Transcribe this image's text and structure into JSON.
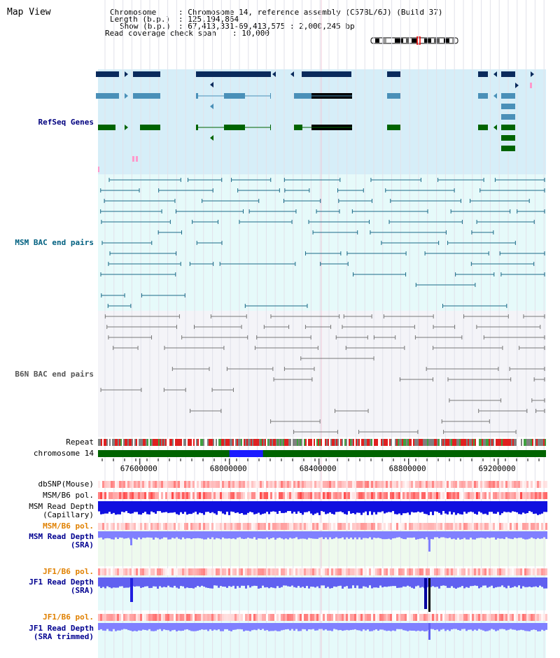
{
  "title": "Map View",
  "info": {
    "chromosome_label": "Chromosome",
    "chromosome_value": ": Chromosome 14, reference assembly (C57BL/6J) (Build 37)",
    "length_label": "Length (b.p.)",
    "length_value": ": 125,194,864",
    "show_label": "Show (b.p.)",
    "show_value": ": 67,413,331-69,413,575 : 2,000,245 bp",
    "coverage_label": "Read coverage check span",
    "coverage_value": ": 10,000"
  },
  "tracks": {
    "refseq": "RefSeq Genes",
    "msm_bac": "MSM BAC end pairs",
    "b6n_bac": "B6N BAC end pairs",
    "repeat": "Repeat",
    "chromosome": "chromosome 14",
    "dbsnp": "dbSNP(Mouse)",
    "msm_b6_pol": "MSM/B6 pol.",
    "msm_read_depth_cap_1": "MSM Read Depth",
    "msm_read_depth_cap_2": "(Capillary)",
    "msm_b6_pol2": "MSM/B6 pol.",
    "msm_read_depth_sra_1": "MSM Read Depth",
    "msm_read_depth_sra_2": "(SRA)",
    "jf1_b6_pol": "JF1/B6 pol.",
    "jf1_read_depth_sra_1": "JF1 Read Depth",
    "jf1_read_depth_sra_2": "(SRA)",
    "jf1_b6_pol2": "JF1/B6 pol.",
    "jf1_read_depth_trim_1": "JF1 Read Depth",
    "jf1_read_depth_trim_2": "(SRA trimmed)"
  },
  "axis": {
    "start_bp": 67413331,
    "end_bp": 69413575,
    "ticks": [
      {
        "value": 67600000,
        "label": "67600000"
      },
      {
        "value": 68000000,
        "label": "68000000"
      },
      {
        "value": 68400000,
        "label": "68400000"
      },
      {
        "value": 68800000,
        "label": "68800000"
      },
      {
        "value": 69200000,
        "label": "69200000"
      }
    ],
    "highlight_start_bp": 68000000,
    "highlight_end_bp": 68150000
  },
  "colors": {
    "refseq_dark": "#0a2a5c",
    "refseq_mid": "#4a90b8",
    "refseq_green": "#006400",
    "refseq_bg": "#d6eef8",
    "msm_bg": "#e6fafa",
    "msm_line": "#1a6a88",
    "b6n_bg": "#f4f4f8",
    "b6n_line": "#777777",
    "chrom_green": "#006400",
    "chrom_blue": "#1a1aff",
    "depth_blue": "#1010e0",
    "depth_light": "#8080ff",
    "pol_red": "#e83030"
  }
}
